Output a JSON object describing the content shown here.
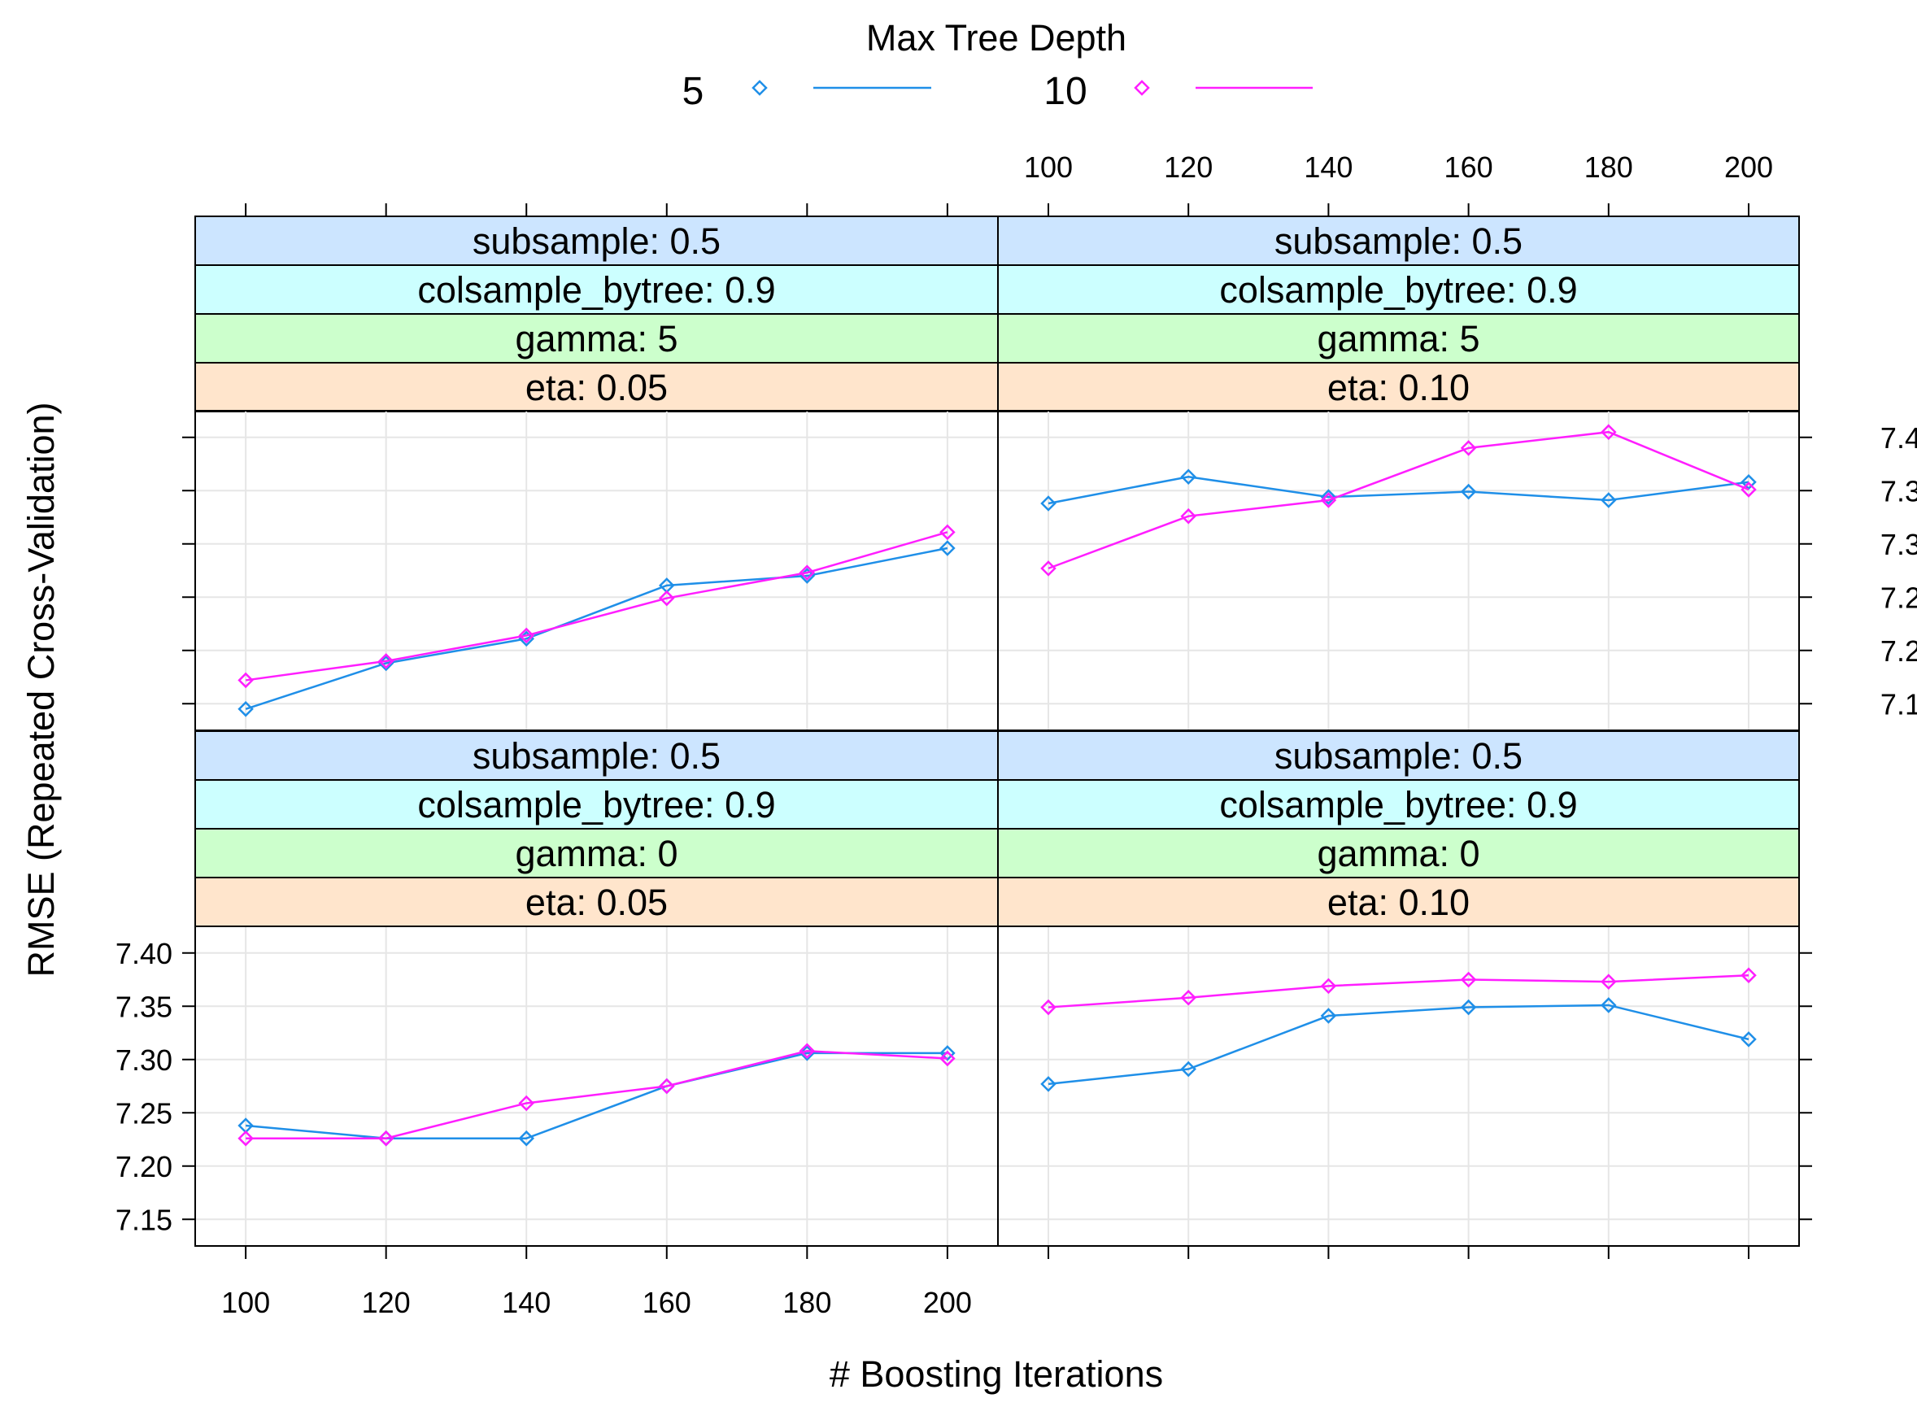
{
  "chart_data": {
    "type": "line",
    "legend": {
      "title": "Max Tree Depth",
      "placement": "top-center",
      "entries": [
        {
          "label": "5",
          "color": "#1f8fe8"
        },
        {
          "label": "10",
          "color": "#ff1eff"
        }
      ]
    },
    "xlabel": "# Boosting Iterations",
    "ylabel": "RMSE (Repeated Cross-Validation)",
    "x_ticks": [
      100,
      120,
      140,
      160,
      180,
      200
    ],
    "x_tick_labels": [
      "100",
      "120",
      "140",
      "160",
      "180",
      "200"
    ],
    "xlim": [
      92.8,
      207.2
    ],
    "y_ticks": [
      7.15,
      7.2,
      7.25,
      7.3,
      7.35,
      7.4
    ],
    "y_tick_labels": [
      "7.15",
      "7.20",
      "7.25",
      "7.30",
      "7.35",
      "7.40"
    ],
    "ylim": [
      7.125,
      7.425
    ],
    "grid": true,
    "strip_colors": {
      "subsample": "#cce5ff",
      "colsample_bytree": "#ccffff",
      "gamma": "#ccffcc",
      "eta": "#ffe5cc"
    },
    "panels": [
      {
        "id": "top-left",
        "strips": [
          "subsample: 0.5",
          "colsample_bytree: 0.9",
          "gamma: 5",
          "eta: 0.05"
        ],
        "x": [
          100,
          120,
          140,
          160,
          180,
          200
        ],
        "series": [
          {
            "name": "5",
            "values": [
              7.145,
              7.188,
              7.211,
              7.261,
              7.27,
              7.296
            ]
          },
          {
            "name": "10",
            "values": [
              7.172,
              7.19,
              7.214,
              7.249,
              7.273,
              7.311
            ]
          }
        ]
      },
      {
        "id": "top-right",
        "strips": [
          "subsample: 0.5",
          "colsample_bytree: 0.9",
          "gamma: 5",
          "eta: 0.10"
        ],
        "x": [
          100,
          120,
          140,
          160,
          180,
          200
        ],
        "series": [
          {
            "name": "5",
            "values": [
              7.338,
              7.363,
              7.344,
              7.349,
              7.341,
              7.358
            ]
          },
          {
            "name": "10",
            "values": [
              7.277,
              7.326,
              7.341,
              7.39,
              7.405,
              7.351
            ]
          }
        ]
      },
      {
        "id": "bottom-left",
        "strips": [
          "subsample: 0.5",
          "colsample_bytree: 0.9",
          "gamma: 0",
          "eta: 0.05"
        ],
        "x": [
          100,
          120,
          140,
          160,
          180,
          200
        ],
        "series": [
          {
            "name": "5",
            "values": [
              7.238,
              7.226,
              7.226,
              7.275,
              7.306,
              7.306
            ]
          },
          {
            "name": "10",
            "values": [
              7.226,
              7.226,
              7.259,
              7.275,
              7.308,
              7.301
            ]
          }
        ]
      },
      {
        "id": "bottom-right",
        "strips": [
          "subsample: 0.5",
          "colsample_bytree: 0.9",
          "gamma: 0",
          "eta: 0.10"
        ],
        "x": [
          100,
          120,
          140,
          160,
          180,
          200
        ],
        "series": [
          {
            "name": "5",
            "values": [
              7.277,
              7.291,
              7.341,
              7.349,
              7.351,
              7.319
            ]
          },
          {
            "name": "10",
            "values": [
              7.349,
              7.358,
              7.369,
              7.375,
              7.373,
              7.379
            ]
          }
        ]
      }
    ]
  }
}
